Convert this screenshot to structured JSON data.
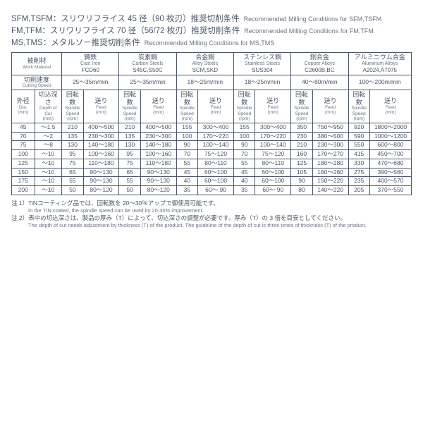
{
  "background_color": "#ffffff",
  "text_color": "#4a5568",
  "sub_text_color": "#6b7280",
  "border_color": "#4a5568",
  "header": {
    "lines": [
      {
        "jp": "SFM,TSFM：スリワリフライス 45 径（90 枚刃）推奨切削条件",
        "en": "Recommended Milling Conditions for SFM,TSFM"
      },
      {
        "jp": "FM,TFM：スリワリフライス 70 径（56/72 枚刃）推奨切削条件",
        "en": "Recommended Milling Conditions for FM,TFM"
      },
      {
        "jp": "MS,TMS：メタルソー推奨切削条件",
        "en": "Recommended Milling Conditions for MS,TMS"
      }
    ]
  },
  "row_headers": {
    "material": {
      "jp": "被削材",
      "en": "Work Material"
    },
    "speed": {
      "jp": "切削速度",
      "en": "Cutting Speed"
    },
    "dia": {
      "jp": "外径",
      "en": "Dia.",
      "unit": "(mm)"
    },
    "doc": {
      "jp": "切込深さ",
      "en": "Depth of Cut",
      "unit": "(mm)"
    },
    "rpm": {
      "jp": "回転数",
      "en": "Spindle Speed",
      "unit": "(rpm)"
    },
    "feed": {
      "jp": "送り",
      "en": "Feed",
      "unit": "(mm)"
    }
  },
  "materials": [
    {
      "jp": "鋳鉄",
      "en": "Cast Iron",
      "code": "FCD60",
      "speed": "25～35m/min"
    },
    {
      "jp": "炭素鋼",
      "en": "Carbon Steels",
      "code": "S45C,S50C",
      "speed": "25～35m/min"
    },
    {
      "jp": "合金鋼",
      "en": "Alloy Steels",
      "code": "SCM,SKD",
      "speed": "18～25m/min"
    },
    {
      "jp": "ステンレス鋼",
      "en": "Stainless Steels",
      "code": "SUS304",
      "speed": "18～25m/min"
    },
    {
      "jp": "銅合金",
      "en": "Copper Alloys",
      "code": "C2600B,BC",
      "speed": "40～80m/min"
    },
    {
      "jp": "アルミニウム合金",
      "en": "Aluminum Alloys",
      "code": "A2024,A7075",
      "speed": "100～200m/min"
    }
  ],
  "rows": [
    {
      "dia": "45",
      "doc": "～1.5",
      "cells": [
        [
          "210",
          "400～500"
        ],
        [
          "210",
          "400～500"
        ],
        [
          "155",
          "300～400"
        ],
        [
          "155",
          "300～400"
        ],
        [
          "350",
          "750～950"
        ],
        [
          "920",
          "1800～2000"
        ]
      ]
    },
    {
      "dia": "70",
      "doc": "～2",
      "cells": [
        [
          "135",
          "230～300"
        ],
        [
          "135",
          "230～300"
        ],
        [
          "100",
          "170～220"
        ],
        [
          "100",
          "170～220"
        ],
        [
          "230",
          "380～500"
        ],
        [
          "590",
          "1000～1200"
        ]
      ]
    },
    {
      "dia": "75",
      "doc": "～8",
      "cells": [
        [
          "130",
          "140～180"
        ],
        [
          "130",
          "140～180"
        ],
        [
          "90",
          "100～140"
        ],
        [
          "90",
          "100～140"
        ],
        [
          "210",
          "230～300"
        ],
        [
          "550",
          "600～800"
        ]
      ]
    },
    {
      "dia": "100",
      "doc": "～10",
      "cells": [
        [
          "95",
          "100～160"
        ],
        [
          "95",
          "100～160"
        ],
        [
          "70",
          "75～120"
        ],
        [
          "70",
          "75～120"
        ],
        [
          "160",
          "170～270"
        ],
        [
          "415",
          "450～700"
        ]
      ]
    },
    {
      "dia": "125",
      "doc": "～10",
      "cells": [
        [
          "75",
          "110～180"
        ],
        [
          "75",
          "110～180"
        ],
        [
          "55",
          "80～110"
        ],
        [
          "55",
          "80～110"
        ],
        [
          "125",
          "180～280"
        ],
        [
          "330",
          "470～680"
        ]
      ]
    },
    {
      "dia": "150",
      "doc": "～10",
      "cells": [
        [
          "65",
          "90～130"
        ],
        [
          "65",
          "90～130"
        ],
        [
          "45",
          "60～100"
        ],
        [
          "45",
          "60～100"
        ],
        [
          "105",
          "160～260"
        ],
        [
          "275",
          "390～560"
        ]
      ]
    },
    {
      "dia": "175",
      "doc": "～10",
      "cells": [
        [
          "55",
          "90～130"
        ],
        [
          "55",
          "90～130"
        ],
        [
          "40",
          "60～100"
        ],
        [
          "40",
          "60～100"
        ],
        [
          "90",
          "150～220"
        ],
        [
          "235",
          "400～570"
        ]
      ]
    },
    {
      "dia": "200",
      "doc": "～10",
      "cells": [
        [
          "50",
          "80～120"
        ],
        [
          "50",
          "80～120"
        ],
        [
          "35",
          "60～ 90"
        ],
        [
          "35",
          "60～ 90"
        ],
        [
          "80",
          "140～220"
        ],
        [
          "205",
          "370～550"
        ]
      ]
    }
  ],
  "notes": {
    "n1_jp": "注 1）TiNコーティング品では、回転数を 20～30％アップで御使用可能です。",
    "n1_en": "In the TIN coated, the spindle speed can be used by 20-30% improvement.",
    "n2_jp": "注 2）表中の切込深さは、製品の厚み（T）によって、切込深さの調整が必要です。厚み（T）の 3 倍を目安としてください。",
    "n2_en": "The depth of cut needs adjustment by thickness (T) of the product. The guideline of the depth of cut is three times of thickness (T) of the product."
  }
}
